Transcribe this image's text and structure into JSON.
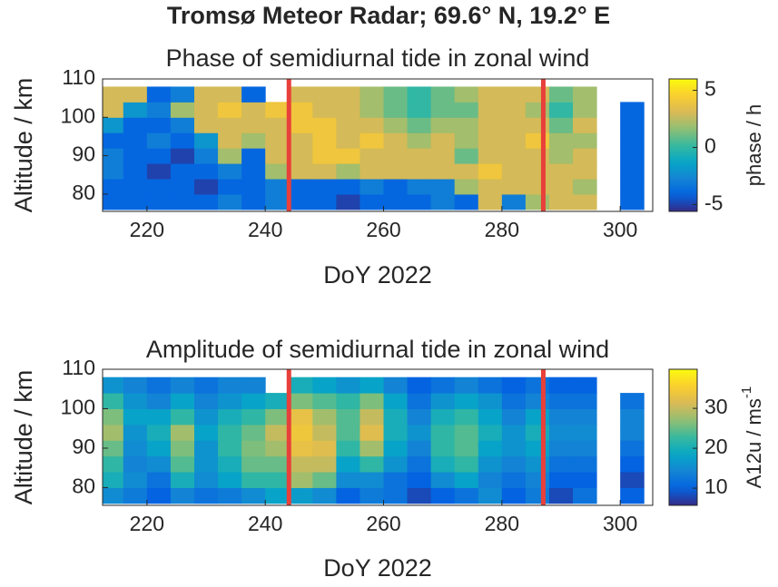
{
  "figure_title": "Tromsø Meteor Radar; 69.6° N, 19.2° E",
  "chart_data": [
    {
      "type": "heatmap",
      "title": "Phase of semidiurnal tide in zonal wind",
      "xlabel": "DoY 2022",
      "ylabel": "Altitude / km",
      "colorbar_label": "phase / h",
      "colormap": "parula",
      "xlim": [
        212.5,
        305.5
      ],
      "xticks": [
        220,
        240,
        260,
        280,
        300
      ],
      "ylim": [
        75.5,
        110
      ],
      "yticks": [
        80,
        90,
        100,
        110
      ],
      "clim": [
        -5.6,
        6
      ],
      "cticks": [
        -5,
        0,
        5
      ],
      "vlines": [
        244,
        287
      ],
      "vline_color": "#e8403a",
      "x": [
        214,
        218,
        222,
        226,
        230,
        234,
        238,
        242,
        246,
        250,
        254,
        258,
        262,
        266,
        270,
        274,
        278,
        282,
        286,
        290,
        294,
        298,
        302
      ],
      "y": [
        78,
        82,
        86,
        90,
        94,
        98,
        102,
        106
      ],
      "z": [
        [
          -4,
          -4,
          -4,
          -4,
          -4,
          -3,
          -4,
          -3,
          -4,
          -4,
          -5,
          -4,
          -4,
          -4,
          -3,
          -4,
          3,
          -3,
          2,
          3,
          3,
          null,
          -4
        ],
        [
          -4,
          -4,
          -4,
          -4,
          -5,
          -4,
          -4,
          -3,
          -4,
          -4,
          -4,
          -3,
          -4,
          -3,
          -3,
          2,
          3,
          3,
          3,
          3,
          2,
          null,
          -4
        ],
        [
          -3,
          -4,
          -5,
          -4,
          -4,
          -3,
          -4,
          2,
          3,
          3,
          2,
          3,
          3,
          3,
          3,
          3,
          4,
          3,
          3,
          3,
          3,
          null,
          -4
        ],
        [
          -3,
          -4,
          -4,
          -5,
          -3,
          2,
          -4,
          3,
          3,
          4,
          4,
          3,
          3,
          3,
          3,
          1,
          3,
          3,
          3,
          2,
          3,
          null,
          -4
        ],
        [
          -4,
          -4,
          -3,
          -4,
          -2,
          3,
          2,
          3,
          3,
          4,
          3,
          4,
          3,
          2,
          3,
          2,
          3,
          3,
          4,
          2,
          2,
          null,
          -4
        ],
        [
          -2,
          -4,
          -4,
          -3,
          3,
          3,
          3,
          3,
          4,
          4,
          3,
          3,
          2,
          1,
          2,
          2,
          3,
          3,
          3,
          1,
          3,
          null,
          -4
        ],
        [
          3,
          -2,
          -3,
          2,
          3,
          4,
          3,
          4,
          4,
          3,
          3,
          2,
          1,
          0,
          1,
          1,
          3,
          3,
          2,
          0,
          2,
          null,
          -4
        ],
        [
          3,
          3,
          -4,
          -3,
          3,
          3,
          -4,
          null,
          3,
          3,
          3,
          2,
          1,
          0,
          1,
          2,
          3,
          3,
          3,
          1,
          2,
          null,
          null
        ]
      ]
    },
    {
      "type": "heatmap",
      "title": "Amplitude of semidiurnal tide in zonal wind",
      "xlabel": "DoY 2022",
      "ylabel": "Altitude / km",
      "colorbar_label": "A12u / ms",
      "colorbar_label_sup": "-1",
      "colormap": "parula",
      "xlim": [
        212.5,
        305.5
      ],
      "xticks": [
        220,
        240,
        260,
        280,
        300
      ],
      "ylim": [
        75.5,
        110
      ],
      "yticks": [
        80,
        90,
        100,
        110
      ],
      "clim": [
        5.7,
        39.8
      ],
      "cticks": [
        10,
        20,
        30
      ],
      "vlines": [
        244,
        287
      ],
      "vline_color": "#e8403a",
      "x": [
        214,
        218,
        222,
        226,
        230,
        234,
        238,
        242,
        246,
        250,
        254,
        258,
        262,
        266,
        270,
        274,
        278,
        282,
        286,
        290,
        294,
        298,
        302
      ],
      "y": [
        78,
        82,
        86,
        90,
        94,
        98,
        102,
        106
      ],
      "z": [
        [
          15,
          13,
          10,
          14,
          12,
          13,
          15,
          18,
          17,
          15,
          10,
          13,
          12,
          8,
          10,
          12,
          15,
          10,
          13,
          8,
          12,
          null,
          10
        ],
        [
          20,
          15,
          12,
          20,
          15,
          18,
          22,
          22,
          28,
          25,
          15,
          15,
          12,
          10,
          15,
          18,
          14,
          12,
          14,
          10,
          10,
          null,
          8
        ],
        [
          22,
          14,
          15,
          24,
          16,
          20,
          25,
          25,
          30,
          30,
          18,
          22,
          16,
          12,
          20,
          22,
          16,
          14,
          16,
          12,
          12,
          null,
          10
        ],
        [
          25,
          15,
          18,
          26,
          16,
          22,
          26,
          28,
          33,
          32,
          22,
          28,
          18,
          14,
          22,
          24,
          18,
          16,
          18,
          14,
          14,
          null,
          12
        ],
        [
          28,
          16,
          20,
          28,
          18,
          22,
          25,
          30,
          34,
          30,
          24,
          32,
          20,
          16,
          22,
          24,
          20,
          16,
          20,
          15,
          15,
          null,
          14
        ],
        [
          26,
          18,
          18,
          22,
          16,
          20,
          22,
          26,
          33,
          28,
          24,
          30,
          20,
          14,
          20,
          22,
          18,
          14,
          18,
          14,
          14,
          null,
          14
        ],
        [
          22,
          16,
          14,
          18,
          14,
          16,
          18,
          20,
          26,
          24,
          22,
          26,
          18,
          12,
          16,
          18,
          16,
          12,
          14,
          12,
          12,
          null,
          12
        ],
        [
          16,
          14,
          12,
          14,
          12,
          14,
          14,
          null,
          20,
          18,
          16,
          18,
          14,
          10,
          12,
          14,
          12,
          10,
          12,
          10,
          10,
          null,
          null
        ]
      ]
    }
  ]
}
